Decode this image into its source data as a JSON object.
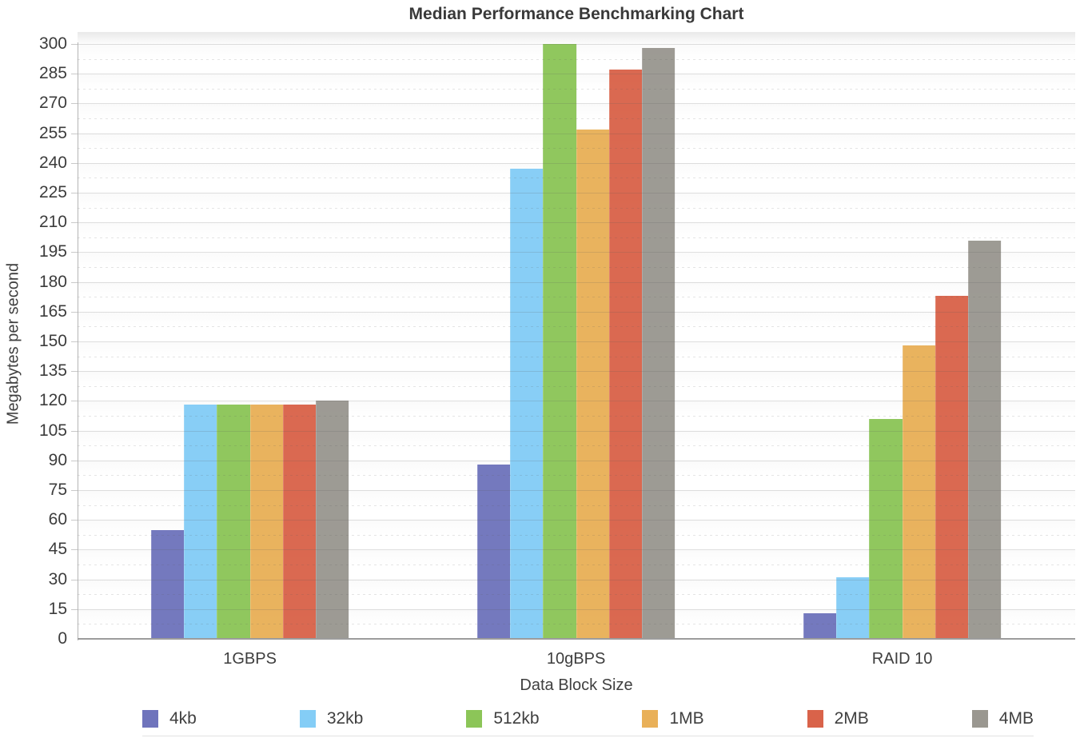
{
  "chart_data": {
    "type": "bar",
    "title": "Median Performance Benchmarking Chart",
    "xlabel": "Data Block Size",
    "ylabel": "Megabytes per second",
    "categories": [
      "1GBPS",
      "10gBPS",
      "RAID 10"
    ],
    "series": [
      {
        "name": "4kb",
        "color": "#6f74bc",
        "values": [
          55,
          88,
          13
        ]
      },
      {
        "name": "32kb",
        "color": "#84cdf6",
        "values": [
          118,
          237,
          31
        ]
      },
      {
        "name": "512kb",
        "color": "#8cc558",
        "values": [
          118,
          300,
          111
        ]
      },
      {
        "name": "1MB",
        "color": "#e9b058",
        "values": [
          118,
          257,
          148
        ]
      },
      {
        "name": "2MB",
        "color": "#d9634a",
        "values": [
          118,
          287,
          173
        ]
      },
      {
        "name": "4MB",
        "color": "#9a9790",
        "values": [
          120,
          298,
          201
        ]
      }
    ],
    "ylim": [
      0,
      300
    ],
    "ytick_step": 15,
    "yminor_step": 7.5,
    "grid": "horizontal, solid major + dotted minor",
    "legend_position": "bottom"
  }
}
